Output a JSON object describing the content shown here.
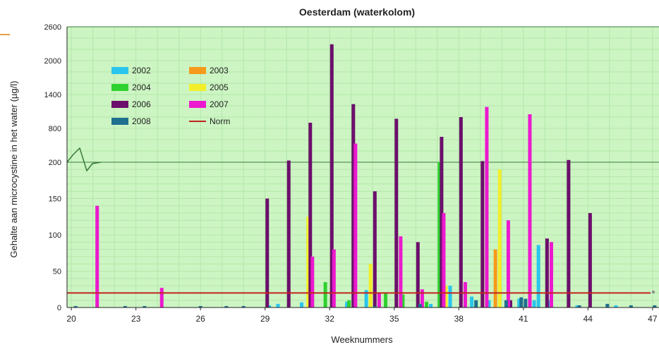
{
  "chart_data": {
    "type": "bar",
    "title": "Oesterdam (waterkolom)",
    "xlabel": "Weeknummers",
    "ylabel": "Gehalte aan microcystine in het water (µg/l)",
    "x_range": [
      19.8,
      47.3
    ],
    "x_ticks": [
      20,
      23,
      26,
      29,
      32,
      35,
      38,
      41,
      44,
      47
    ],
    "y_axis": {
      "type": "broken",
      "lower_ticks": [
        0,
        50,
        100,
        150,
        200
      ],
      "upper_ticks": [
        800,
        1400,
        2000,
        2600
      ],
      "upper_tick_labels": [
        "800",
        "1400",
        "2000",
        "2600"
      ],
      "break_at": 200,
      "max": 2600
    },
    "grid": true,
    "legend_position": "top-left",
    "series": [
      {
        "name": "2002",
        "color": "#29c5ec",
        "points": [
          [
            29.2,
            3
          ],
          [
            29.6,
            5
          ],
          [
            30.7,
            7
          ],
          [
            32.8,
            8
          ],
          [
            33.7,
            24
          ],
          [
            36.7,
            5
          ],
          [
            37.6,
            30
          ],
          [
            38.6,
            15
          ],
          [
            39.4,
            10
          ],
          [
            40.3,
            12
          ],
          [
            40.8,
            12
          ],
          [
            41.5,
            10
          ],
          [
            41.7,
            86
          ],
          [
            42.2,
            10
          ],
          [
            43.5,
            3
          ],
          [
            45.3,
            3
          ]
        ]
      },
      {
        "name": "2003",
        "color": "#f59a1a",
        "points": [
          [
            39.7,
            80
          ]
        ]
      },
      {
        "name": "2004",
        "color": "#2fd12f",
        "points": [
          [
            31.8,
            35
          ],
          [
            32.9,
            10
          ],
          [
            34.6,
            20
          ],
          [
            35.4,
            18
          ],
          [
            36.5,
            8
          ],
          [
            37.1,
            205
          ]
        ]
      },
      {
        "name": "2005",
        "color": "#f2ee2a",
        "points": [
          [
            31.0,
            125
          ],
          [
            33.9,
            60
          ],
          [
            37.4,
            30
          ],
          [
            39.1,
            80
          ],
          [
            39.9,
            190
          ]
        ]
      },
      {
        "name": "2006",
        "color": "#6b0f6b",
        "points": [
          [
            29.1,
            150
          ],
          [
            30.1,
            230
          ],
          [
            31.1,
            900
          ],
          [
            32.1,
            2290
          ],
          [
            33.1,
            1230
          ],
          [
            34.1,
            160
          ],
          [
            35.1,
            970
          ],
          [
            36.1,
            90
          ],
          [
            37.2,
            650
          ],
          [
            38.1,
            1000
          ],
          [
            39.1,
            220
          ],
          [
            40.4,
            10
          ],
          [
            42.1,
            95
          ],
          [
            43.1,
            240
          ],
          [
            44.1,
            130
          ]
        ]
      },
      {
        "name": "2007",
        "color": "#ec19cf",
        "points": [
          [
            21.2,
            140
          ],
          [
            24.2,
            27
          ],
          [
            31.2,
            70
          ],
          [
            32.2,
            80
          ],
          [
            33.2,
            530
          ],
          [
            34.3,
            20
          ],
          [
            35.3,
            98
          ],
          [
            36.3,
            25
          ],
          [
            37.3,
            130
          ],
          [
            38.3,
            35
          ],
          [
            39.3,
            1180
          ],
          [
            40.3,
            120
          ],
          [
            41.3,
            1050
          ],
          [
            42.3,
            90
          ]
        ]
      },
      {
        "name": "2008",
        "color": "#1f6f8f",
        "points": [
          [
            20.2,
            2
          ],
          [
            22.5,
            2
          ],
          [
            23.4,
            2
          ],
          [
            26.0,
            2
          ],
          [
            27.2,
            2
          ],
          [
            28.0,
            2
          ],
          [
            34.1,
            2
          ],
          [
            36.2,
            5
          ],
          [
            38.8,
            10
          ],
          [
            40.2,
            10
          ],
          [
            40.9,
            14
          ],
          [
            41.1,
            12
          ],
          [
            43.6,
            3
          ],
          [
            44.9,
            5
          ],
          [
            46.0,
            3
          ],
          [
            47.1,
            3
          ]
        ]
      }
    ],
    "norm": {
      "name": "Norm",
      "value": 20,
      "color": "#c0241f"
    },
    "legend": [
      {
        "label": "2002",
        "color": "#29c5ec",
        "kind": "bar"
      },
      {
        "label": "2003",
        "color": "#f59a1a",
        "kind": "bar"
      },
      {
        "label": "2004",
        "color": "#2fd12f",
        "kind": "bar"
      },
      {
        "label": "2005",
        "color": "#f2ee2a",
        "kind": "bar"
      },
      {
        "label": "2006",
        "color": "#6b0f6b",
        "kind": "bar"
      },
      {
        "label": "2007",
        "color": "#ec19cf",
        "kind": "bar"
      },
      {
        "label": "2008",
        "color": "#1f6f8f",
        "kind": "bar"
      },
      {
        "label": "Norm",
        "color": "#c0241f",
        "kind": "line"
      }
    ],
    "plot_background": "#ccf5c3",
    "grid_color": "#b4e6a9"
  }
}
